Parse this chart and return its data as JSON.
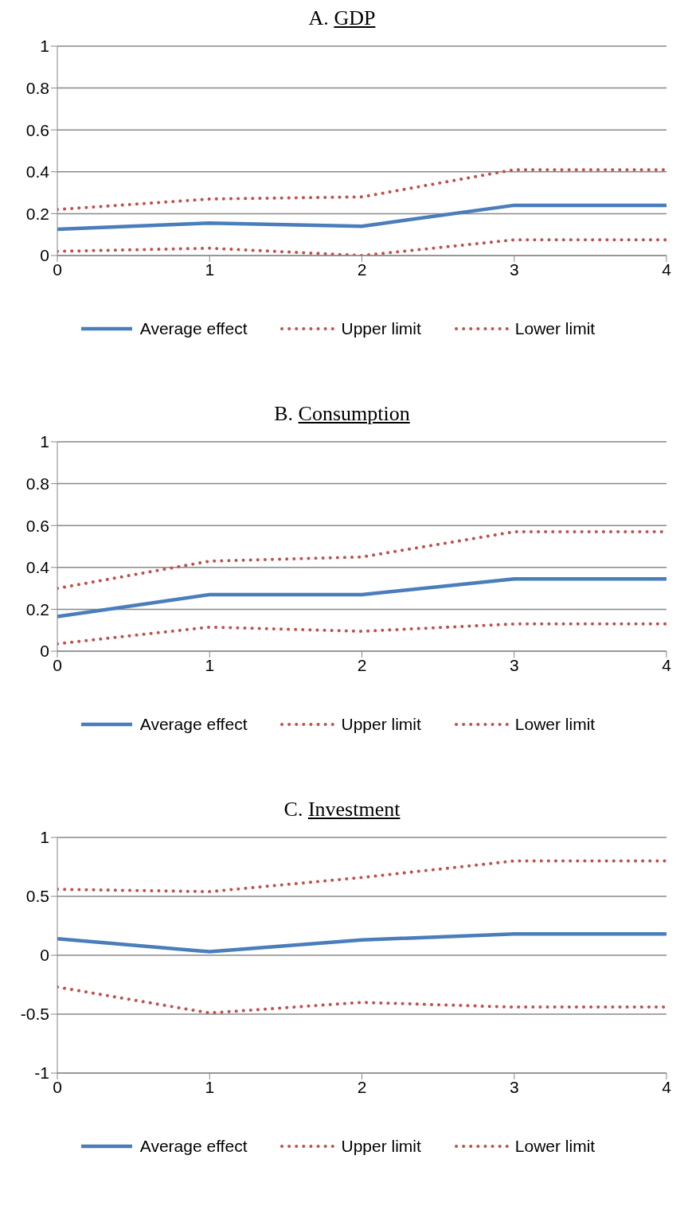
{
  "chart_data": [
    {
      "type": "line",
      "title": "A. GDP",
      "x": [
        0,
        1,
        2,
        3,
        4
      ],
      "xlim": [
        0,
        4
      ],
      "xticks": [
        0,
        1,
        2,
        3,
        4
      ],
      "ylim": [
        0,
        1
      ],
      "yticks": [
        0,
        0.2,
        0.4,
        0.6,
        0.8,
        1
      ],
      "grid": "y",
      "legend": "bottom",
      "series": [
        {
          "name": "Average effect",
          "color": "#4a7ebb",
          "line_style": "solid",
          "values": [
            0.125,
            0.155,
            0.14,
            0.24,
            0.24
          ]
        },
        {
          "name": "Upper limit",
          "color": "#c0504d",
          "line_style": "dotted",
          "values": [
            0.22,
            0.27,
            0.28,
            0.41,
            0.41
          ]
        },
        {
          "name": "Lower limit",
          "color": "#c0504d",
          "line_style": "dotted",
          "values": [
            0.02,
            0.035,
            0.0,
            0.075,
            0.075
          ]
        }
      ]
    },
    {
      "type": "line",
      "title": "B. Consumption",
      "x": [
        0,
        1,
        2,
        3,
        4
      ],
      "xlim": [
        0,
        4
      ],
      "xticks": [
        0,
        1,
        2,
        3,
        4
      ],
      "ylim": [
        0,
        1
      ],
      "yticks": [
        0,
        0.2,
        0.4,
        0.6,
        0.8,
        1
      ],
      "grid": "y",
      "legend": "bottom",
      "series": [
        {
          "name": "Average effect",
          "color": "#4a7ebb",
          "line_style": "solid",
          "values": [
            0.165,
            0.27,
            0.27,
            0.345,
            0.345
          ]
        },
        {
          "name": "Upper limit",
          "color": "#c0504d",
          "line_style": "dotted",
          "values": [
            0.3,
            0.43,
            0.45,
            0.57,
            0.57
          ]
        },
        {
          "name": "Lower limit",
          "color": "#c0504d",
          "line_style": "dotted",
          "values": [
            0.035,
            0.115,
            0.095,
            0.13,
            0.13
          ]
        }
      ]
    },
    {
      "type": "line",
      "title": "C. Investment",
      "x": [
        0,
        1,
        2,
        3,
        4
      ],
      "xlim": [
        0,
        4
      ],
      "xticks": [
        0,
        1,
        2,
        3,
        4
      ],
      "ylim": [
        -1,
        1
      ],
      "yticks": [
        -1,
        -0.5,
        0,
        0.5,
        1
      ],
      "grid": "y",
      "legend": "bottom",
      "series": [
        {
          "name": "Average effect",
          "color": "#4a7ebb",
          "line_style": "solid",
          "values": [
            0.14,
            0.03,
            0.13,
            0.18,
            0.18
          ]
        },
        {
          "name": "Upper limit",
          "color": "#c0504d",
          "line_style": "dotted",
          "values": [
            0.56,
            0.54,
            0.66,
            0.8,
            0.8
          ]
        },
        {
          "name": "Lower limit",
          "color": "#c0504d",
          "line_style": "dotted",
          "values": [
            -0.27,
            -0.49,
            -0.4,
            -0.44,
            -0.44
          ]
        }
      ]
    }
  ]
}
